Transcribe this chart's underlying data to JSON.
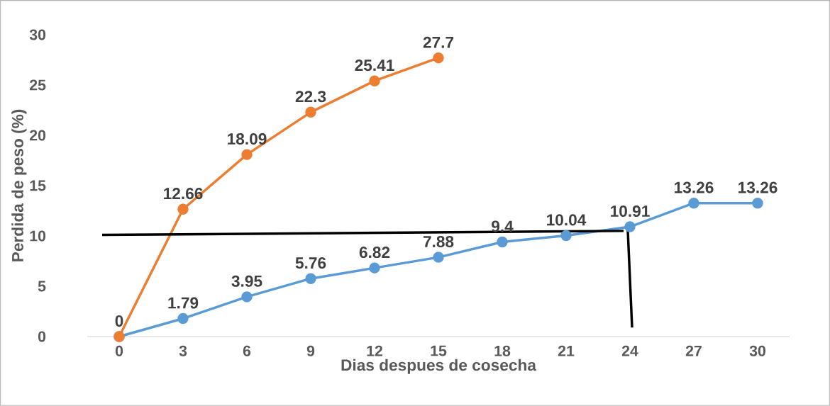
{
  "chart_data": {
    "type": "line",
    "xlabel": "Dias despues de cosecha",
    "ylabel": "Perdida de peso (%)",
    "xlim": [
      -1.5,
      31.5
    ],
    "xticks": [
      0,
      3,
      6,
      9,
      12,
      15,
      18,
      21,
      24,
      27,
      30
    ],
    "ylim": [
      0,
      30
    ],
    "yticks": [
      0,
      5,
      10,
      15,
      20,
      25,
      30
    ],
    "marker": "circle",
    "line_style": "solid",
    "data_labels": true,
    "series": [
      {
        "color": "#5b9bd5",
        "x": [
          0,
          3,
          6,
          9,
          12,
          15,
          18,
          21,
          24,
          27,
          30
        ],
        "values": [
          0,
          1.79,
          3.95,
          5.76,
          6.82,
          7.88,
          9.4,
          10.04,
          10.91,
          13.26,
          13.26
        ]
      },
      {
        "color": "#ed7d31",
        "x": [
          0,
          3,
          6,
          9,
          12,
          15
        ],
        "values": [
          0,
          12.66,
          18.09,
          22.3,
          25.41,
          27.7
        ],
        "data_labels": false,
        "value_labels": [
          null,
          "12.66",
          "18.09",
          "22.3",
          "25.41",
          "27.7"
        ]
      },
      {
        "color": "#000000",
        "x": [
          -0.8,
          23.7
        ],
        "values": [
          10.1,
          10.5
        ],
        "marker": "none",
        "data_labels": false
      },
      {
        "color": "#000000",
        "x": [
          23.9,
          24.1
        ],
        "values": [
          10.5,
          0.9
        ],
        "marker": "none",
        "data_labels": false
      }
    ]
  }
}
